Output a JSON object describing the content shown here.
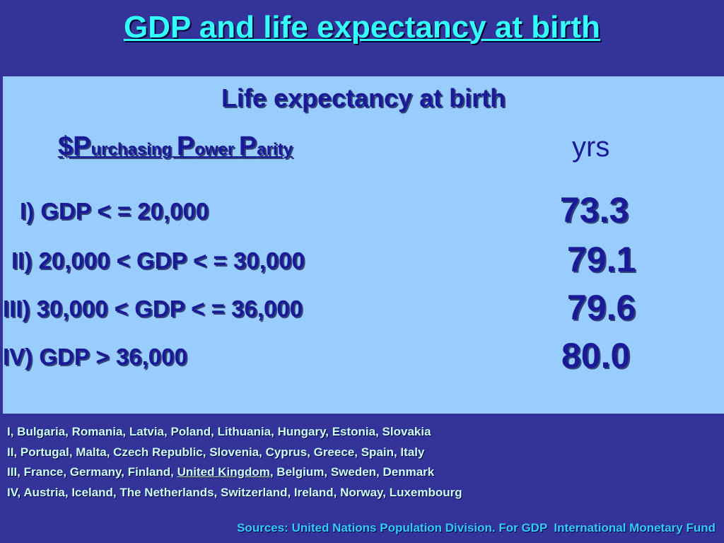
{
  "header": {
    "title": "GDP and life expectancy at birth"
  },
  "panel": {
    "heading": "Life expectancy at birth",
    "column_label_parts": [
      "$P",
      "urchasing ",
      "P",
      "ower ",
      "P",
      "arity"
    ],
    "unit": "yrs",
    "rows": [
      {
        "label": "I) GDP < = 20,000",
        "value": "73.3"
      },
      {
        "label": "II) 20,000 < GDP < = 30,000",
        "value": "79.1"
      },
      {
        "label": "III) 30,000 < GDP < = 36,000",
        "value": "79.6"
      },
      {
        "label": "IV) GDP > 36,000",
        "value": "80.0"
      }
    ]
  },
  "notes": [
    [
      "I, Bulgaria, Romania, Latvia, Poland, Lithuania, Hungary, Estonia, Slovakia"
    ],
    [
      "II, Portugal, Malta, Czech Republic, Slovenia, Cyprus, Greece, Spain, Italy"
    ],
    [
      "III, France, Germany, Finland, ",
      "United Kingdom",
      ", Belgium, Sweden, Denmark"
    ],
    [
      "IV, Austria, Iceland, The Netherlands, Switzerland, Ireland, Norway, Luxembourg"
    ]
  ],
  "source": "Sources: United Nations Population Division. For GDP  International Monetary Fund"
}
